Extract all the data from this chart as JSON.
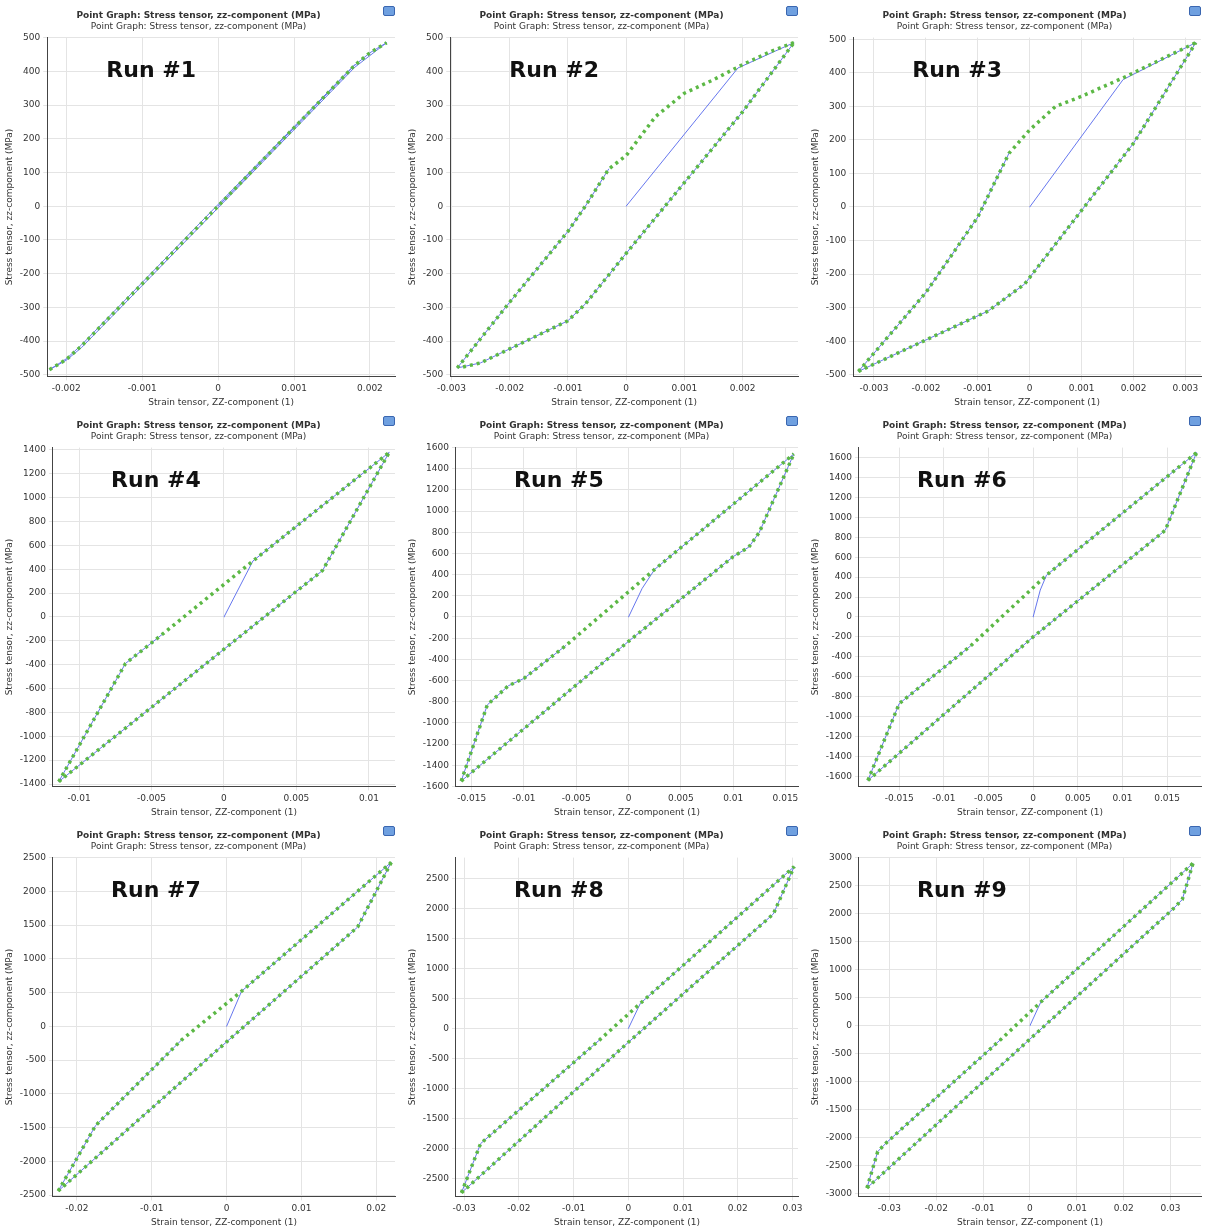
{
  "chart_data": [
    {
      "type": "line",
      "title": "Point Graph: Stress tensor, zz-component (MPa)",
      "subtitle": "Point Graph: Stress tensor, zz-component (MPa)",
      "xlabel": "Strain tensor, ZZ-component (1)",
      "ylabel": "Stress tensor, zz-component (MPa)",
      "annotations": [
        "Run #1"
      ],
      "xlim": [
        -0.00225,
        0.00233
      ],
      "xticks": [
        -0.002,
        -0.001,
        0,
        0.001,
        0.002
      ],
      "ylim": [
        -505,
        500
      ],
      "yticks": [
        -500,
        -400,
        -300,
        -200,
        -100,
        0,
        100,
        200,
        300,
        400,
        500
      ],
      "grid": true,
      "series": [
        {
          "color": "#6677ee",
          "line_style": "solid",
          "x": [
            0,
            0.0018,
            0.002,
            0.00222,
            0.0018,
            0,
            -0.0018,
            -0.002,
            -0.00222,
            -0.002,
            -0.0018,
            0,
            0.0018
          ],
          "values": [
            0,
            418,
            455,
            485,
            412,
            -5,
            -420,
            -457,
            -485,
            -453,
            -412,
            5,
            420
          ]
        },
        {
          "color": "#5cb845",
          "line_style": "dotted",
          "x": [
            -0.00222,
            -0.002,
            -0.0018,
            0,
            0.0018,
            0.002,
            0.00222
          ],
          "values": [
            -485,
            -455,
            -415,
            0,
            418,
            455,
            485
          ]
        }
      ]
    },
    {
      "type": "line",
      "title": "Point Graph: Stress tensor, zz-component (MPa)",
      "subtitle": "Point Graph: Stress tensor, zz-component (MPa)",
      "xlabel": "Strain tensor, ZZ-component (1)",
      "ylabel": "Stress tensor, zz-component (MPa)",
      "annotations": [
        "Run #2"
      ],
      "xlim": [
        -0.00302,
        0.00295
      ],
      "xticks": [
        -0.003,
        -0.002,
        -0.001,
        0,
        0.001,
        0.002
      ],
      "ylim": [
        -505,
        500
      ],
      "yticks": [
        -500,
        -400,
        -300,
        -200,
        -100,
        0,
        100,
        200,
        300,
        400,
        500
      ],
      "grid": true,
      "series": [
        {
          "color": "#6677ee",
          "line_style": "solid",
          "x": [
            0,
            0.00192,
            0.00288,
            0.002,
            0.001,
            0,
            -0.0007,
            -0.001,
            -0.0025,
            -0.0029,
            -0.002,
            -0.001,
            -0.0007,
            -0.0003
          ],
          "values": [
            0,
            410,
            485,
            280,
            70,
            -140,
            -290,
            -340,
            -465,
            -480,
            -285,
            -75,
            0,
            110
          ]
        },
        {
          "color": "#5cb845",
          "line_style": "dotted",
          "x": [
            -0.0029,
            -0.002,
            -0.001,
            -0.0007,
            -0.0003,
            0,
            0.0005,
            0.001,
            0.0015,
            0.002,
            0.0025,
            0.00288
          ],
          "values": [
            -480,
            -285,
            -75,
            0,
            110,
            150,
            265,
            335,
            375,
            420,
            460,
            485
          ]
        },
        {
          "color": "#5cb845",
          "line_style": "dotted",
          "x": [
            -0.0028,
            -0.0025,
            -0.001,
            -0.0007,
            0,
            0.001,
            0.002,
            0.00288
          ],
          "values": [
            -477,
            -465,
            -340,
            -290,
            -140,
            70,
            280,
            485
          ]
        }
      ]
    },
    {
      "type": "line",
      "title": "Point Graph: Stress tensor, zz-component (MPa)",
      "subtitle": "Point Graph: Stress tensor, zz-component (MPa)",
      "xlabel": "Strain tensor, ZZ-component (1)",
      "ylabel": "Stress tensor, zz-component (MPa)",
      "annotations": [
        "Run #3"
      ],
      "xlim": [
        -0.0034,
        0.0033
      ],
      "xticks": [
        -0.003,
        -0.002,
        -0.001,
        0,
        0.001,
        0.002,
        0.003
      ],
      "ylim": [
        -505,
        505
      ],
      "yticks": [
        -500,
        -400,
        -300,
        -200,
        -100,
        0,
        100,
        200,
        300,
        400,
        500
      ],
      "grid": true,
      "series": [
        {
          "color": "#6677ee",
          "line_style": "solid",
          "x": [
            0,
            0.0018,
            0.0032,
            0.002,
            -0.0001,
            -0.0008,
            -0.0033,
            -0.002,
            -0.001,
            -0.0004
          ],
          "values": [
            0,
            380,
            490,
            190,
            -230,
            -310,
            -490,
            -255,
            -30,
            160
          ]
        },
        {
          "color": "#5cb845",
          "line_style": "dotted",
          "x": [
            -0.0033,
            -0.002,
            -0.001,
            -0.0004,
            0,
            0.0005,
            0.001,
            0.0018,
            0.0032
          ],
          "values": [
            -490,
            -255,
            -30,
            160,
            230,
            300,
            330,
            385,
            490
          ]
        },
        {
          "color": "#5cb845",
          "line_style": "dotted",
          "x": [
            -0.0033,
            -0.0008,
            -0.0001,
            0.002,
            0.0032
          ],
          "values": [
            -490,
            -310,
            -230,
            190,
            490
          ]
        }
      ]
    },
    {
      "type": "line",
      "title": "Point Graph: Stress tensor, zz-component (MPa)",
      "subtitle": "Point Graph: Stress tensor, zz-component (MPa)",
      "xlabel": "Strain tensor, ZZ-component (1)",
      "ylabel": "Stress tensor, zz-component (MPa)",
      "annotations": [
        "Run #4"
      ],
      "xlim": [
        -0.0118,
        0.0118
      ],
      "xticks": [
        -0.01,
        -0.005,
        0,
        0.005,
        0.01
      ],
      "ylim": [
        -1420,
        1420
      ],
      "yticks": [
        -1400,
        -1200,
        -1000,
        -800,
        -600,
        -400,
        -200,
        0,
        200,
        400,
        600,
        800,
        1000,
        1200,
        1400
      ],
      "grid": true,
      "series": [
        {
          "color": "#6677ee",
          "line_style": "solid",
          "x": [
            0,
            0.002,
            0.0114,
            0.0068,
            0,
            -0.0114,
            -0.0068,
            -0.0042
          ],
          "values": [
            0,
            470,
            1380,
            390,
            -270,
            -1380,
            -390,
            -140
          ]
        },
        {
          "color": "#5cb845",
          "line_style": "dotted",
          "x": [
            -0.0114,
            -0.0068,
            -0.0042,
            0.002,
            0.0114
          ],
          "values": [
            -1380,
            -390,
            -140,
            470,
            1380
          ]
        },
        {
          "color": "#5cb845",
          "line_style": "dotted",
          "x": [
            -0.0114,
            0,
            0.0068,
            0.0114
          ],
          "values": [
            -1380,
            -270,
            390,
            1380
          ]
        }
      ]
    },
    {
      "type": "line",
      "title": "Point Graph: Stress tensor, zz-component (MPa)",
      "subtitle": "Point Graph: Stress tensor, zz-component (MPa)",
      "xlabel": "Strain tensor, ZZ-component (1)",
      "ylabel": "Stress tensor, zz-component (MPa)",
      "annotations": [
        "Run #5"
      ],
      "xlim": [
        -0.0165,
        0.0162
      ],
      "xticks": [
        -0.015,
        -0.01,
        -0.005,
        0,
        0.005,
        0.01,
        0.015
      ],
      "ylim": [
        -1600,
        1600
      ],
      "yticks": [
        -1600,
        -1400,
        -1200,
        -1000,
        -800,
        -600,
        -400,
        -200,
        0,
        200,
        400,
        600,
        800,
        1000,
        1200,
        1400,
        1600
      ],
      "grid": true,
      "series": [
        {
          "color": "#6677ee",
          "line_style": "solid",
          "x": [
            0,
            0.0013,
            0.0025,
            0.0158,
            0.0125,
            0.0115,
            0.01,
            0,
            -0.016,
            -0.0135,
            -0.0115,
            -0.01,
            -0.006
          ],
          "values": [
            0,
            270,
            450,
            1540,
            800,
            660,
            570,
            -230,
            -1550,
            -830,
            -650,
            -580,
            -270
          ]
        },
        {
          "color": "#5cb845",
          "line_style": "dotted",
          "x": [
            -0.016,
            -0.0135,
            -0.0115,
            -0.01,
            -0.006,
            0.0025,
            0.0158
          ],
          "values": [
            -1550,
            -830,
            -650,
            -580,
            -270,
            450,
            1540
          ]
        },
        {
          "color": "#5cb845",
          "line_style": "dotted",
          "x": [
            -0.016,
            0,
            0.01,
            0.0115,
            0.0125,
            0.0158
          ],
          "values": [
            -1550,
            -230,
            570,
            660,
            800,
            1540
          ]
        }
      ]
    },
    {
      "type": "line",
      "title": "Point Graph: Stress tensor, zz-component (MPa)",
      "subtitle": "Point Graph: Stress tensor, zz-component (MPa)",
      "xlabel": "Strain tensor, ZZ-component (1)",
      "ylabel": "Stress tensor, zz-component (MPa)",
      "annotations": [
        "Run #6"
      ],
      "xlim": [
        -0.0195,
        0.0188
      ],
      "xticks": [
        -0.015,
        -0.01,
        -0.005,
        0,
        0.005,
        0.01,
        0.015
      ],
      "ylim": [
        -1700,
        1700
      ],
      "yticks": [
        -1600,
        -1400,
        -1200,
        -1000,
        -800,
        -600,
        -400,
        -200,
        0,
        200,
        400,
        600,
        800,
        1000,
        1200,
        1400,
        1600
      ],
      "grid": true,
      "series": [
        {
          "color": "#6677ee",
          "line_style": "solid",
          "x": [
            0,
            0.0008,
            0.0015,
            0.0183,
            0.0148,
            0,
            -0.0185,
            -0.015,
            -0.007
          ],
          "values": [
            0,
            270,
            420,
            1650,
            870,
            -200,
            -1640,
            -870,
            -290
          ]
        },
        {
          "color": "#5cb845",
          "line_style": "dotted",
          "x": [
            -0.0185,
            -0.015,
            -0.007,
            0.0015,
            0.0183
          ],
          "values": [
            -1640,
            -870,
            -290,
            420,
            1650
          ]
        },
        {
          "color": "#5cb845",
          "line_style": "dotted",
          "x": [
            -0.0185,
            0,
            0.0148,
            0.0183
          ],
          "values": [
            -1640,
            -200,
            870,
            1650
          ]
        }
      ]
    },
    {
      "type": "line",
      "title": "Point Graph: Stress tensor, zz-component (MPa)",
      "subtitle": "Point Graph: Stress tensor, zz-component (MPa)",
      "xlabel": "Strain tensor, ZZ-component (1)",
      "ylabel": "Stress tensor, zz-component (MPa)",
      "annotations": [
        "Run #7"
      ],
      "xlim": [
        -0.0232,
        0.0225
      ],
      "xticks": [
        -0.02,
        -0.01,
        0,
        0.01,
        0.02
      ],
      "ylim": [
        -2520,
        2500
      ],
      "yticks": [
        -2500,
        -2000,
        -1500,
        -1000,
        -500,
        0,
        500,
        1000,
        1500,
        2000,
        2500
      ],
      "grid": true,
      "series": [
        {
          "color": "#6677ee",
          "line_style": "solid",
          "x": [
            0,
            0.002,
            0.022,
            0.0175,
            0,
            -0.0225,
            -0.0175,
            -0.006
          ],
          "values": [
            0,
            520,
            2430,
            1470,
            -230,
            -2440,
            -1470,
            -200
          ]
        },
        {
          "color": "#5cb845",
          "line_style": "dotted",
          "x": [
            -0.0225,
            -0.0175,
            -0.006,
            0.002,
            0.022
          ],
          "values": [
            -2440,
            -1470,
            -200,
            520,
            2430
          ]
        },
        {
          "color": "#5cb845",
          "line_style": "dotted",
          "x": [
            -0.0225,
            0,
            0.0175,
            0.022
          ],
          "values": [
            -2440,
            -230,
            1470,
            2430
          ]
        }
      ]
    },
    {
      "type": "line",
      "title": "Point Graph: Stress tensor, zz-component (MPa)",
      "subtitle": "Point Graph: Stress tensor, zz-component (MPa)",
      "xlabel": "Strain tensor, ZZ-component (1)",
      "ylabel": "Stress tensor, zz-component (MPa)",
      "annotations": [
        "Run #8"
      ],
      "xlim": [
        -0.0315,
        0.031
      ],
      "xticks": [
        -0.03,
        -0.02,
        -0.01,
        0,
        0.01,
        0.02,
        0.03
      ],
      "ylim": [
        -2800,
        2850
      ],
      "yticks": [
        -2500,
        -2000,
        -1500,
        -1000,
        -500,
        0,
        500,
        1000,
        1500,
        2000,
        2500
      ],
      "grid": true,
      "series": [
        {
          "color": "#6677ee",
          "line_style": "solid",
          "x": [
            0,
            0.0022,
            0.0303,
            0.0265,
            0,
            -0.0305,
            -0.027,
            -0.005
          ],
          "values": [
            0,
            420,
            2700,
            1910,
            -230,
            -2740,
            -1920,
            -170
          ]
        },
        {
          "color": "#5cb845",
          "line_style": "dotted",
          "x": [
            -0.0305,
            -0.027,
            -0.005,
            0.0022,
            0.0303
          ],
          "values": [
            -2740,
            -1920,
            -170,
            420,
            2700
          ]
        },
        {
          "color": "#5cb845",
          "line_style": "dotted",
          "x": [
            -0.0305,
            0,
            0.0265,
            0.0303
          ],
          "values": [
            -2740,
            -230,
            1910,
            2700
          ]
        }
      ]
    },
    {
      "type": "line",
      "title": "Point Graph: Stress tensor, zz-component (MPa)",
      "subtitle": "Point Graph: Stress tensor, zz-component (MPa)",
      "xlabel": "Strain tensor, ZZ-component (1)",
      "ylabel": "Stress tensor, zz-component (MPa)",
      "annotations": [
        "Run #9"
      ],
      "xlim": [
        -0.0365,
        0.0365
      ],
      "xticks": [
        -0.03,
        -0.02,
        -0.01,
        0,
        0.01,
        0.02,
        0.03
      ],
      "ylim": [
        -3050,
        3000
      ],
      "yticks": [
        -3000,
        -2500,
        -2000,
        -1500,
        -1000,
        -500,
        0,
        500,
        1000,
        1500,
        2000,
        2500,
        3000
      ],
      "grid": true,
      "series": [
        {
          "color": "#6677ee",
          "line_style": "solid",
          "x": [
            0,
            0.0023,
            0.0348,
            0.0325,
            0.0305,
            0,
            -0.0348,
            -0.0325,
            -0.0305,
            -0.006
          ],
          "values": [
            0,
            420,
            2900,
            2250,
            2080,
            -240,
            -2900,
            -2250,
            -2080,
            -230
          ]
        },
        {
          "color": "#5cb845",
          "line_style": "dotted",
          "x": [
            -0.0348,
            -0.0325,
            -0.0305,
            -0.006,
            0.0023,
            0.0348
          ],
          "values": [
            -2900,
            -2250,
            -2080,
            -230,
            420,
            2900
          ]
        },
        {
          "color": "#5cb845",
          "line_style": "dotted",
          "x": [
            -0.0348,
            0,
            0.0305,
            0.0325,
            0.0348
          ],
          "values": [
            -2900,
            -240,
            2080,
            2250,
            2900
          ]
        }
      ]
    }
  ]
}
